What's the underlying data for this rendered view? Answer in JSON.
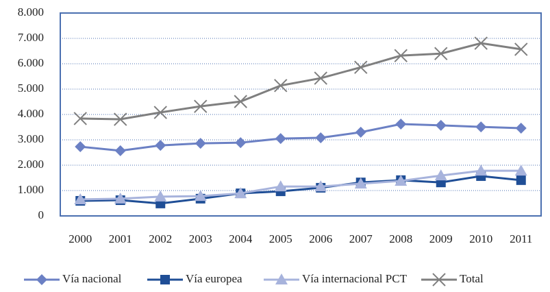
{
  "chart_data": {
    "type": "line",
    "categories": [
      "2000",
      "2001",
      "2002",
      "2003",
      "2004",
      "2005",
      "2006",
      "2007",
      "2008",
      "2009",
      "2010",
      "2011"
    ],
    "series": [
      {
        "name": "Vía nacional",
        "color": "#6b80c4",
        "marker": "diamond",
        "values": [
          2730,
          2570,
          2780,
          2860,
          2890,
          3050,
          3080,
          3300,
          3620,
          3570,
          3510,
          3460
        ]
      },
      {
        "name": "Vía europea",
        "color": "#1f4e96",
        "marker": "square",
        "values": [
          595,
          620,
          490,
          680,
          890,
          970,
          1110,
          1320,
          1410,
          1320,
          1570,
          1410
        ]
      },
      {
        "name": "Vía internacional PCT",
        "color": "#a7b3dc",
        "marker": "triangle",
        "values": [
          650,
          680,
          760,
          780,
          890,
          1160,
          1160,
          1270,
          1380,
          1590,
          1780,
          1780
        ]
      },
      {
        "name": "Total",
        "color": "#7f7f7f",
        "marker": "x",
        "values": [
          3840,
          3810,
          4080,
          4320,
          4510,
          5140,
          5430,
          5860,
          6320,
          6400,
          6810,
          6570
        ]
      }
    ],
    "ylim": [
      0,
      8000
    ],
    "yticks": [
      0,
      {
        "value": 1000,
        "label": "1.000"
      },
      {
        "value": 2000,
        "label": "2.000"
      },
      {
        "value": 3000,
        "label": "3.000"
      },
      {
        "value": 4000,
        "label": "4.000"
      },
      {
        "value": 5000,
        "label": "5.000"
      },
      {
        "value": 6000,
        "label": "6.000"
      },
      {
        "value": 7000,
        "label": "7.000"
      },
      {
        "value": 8000,
        "label": "8.000"
      }
    ],
    "grid": true,
    "legend": "bottom"
  }
}
